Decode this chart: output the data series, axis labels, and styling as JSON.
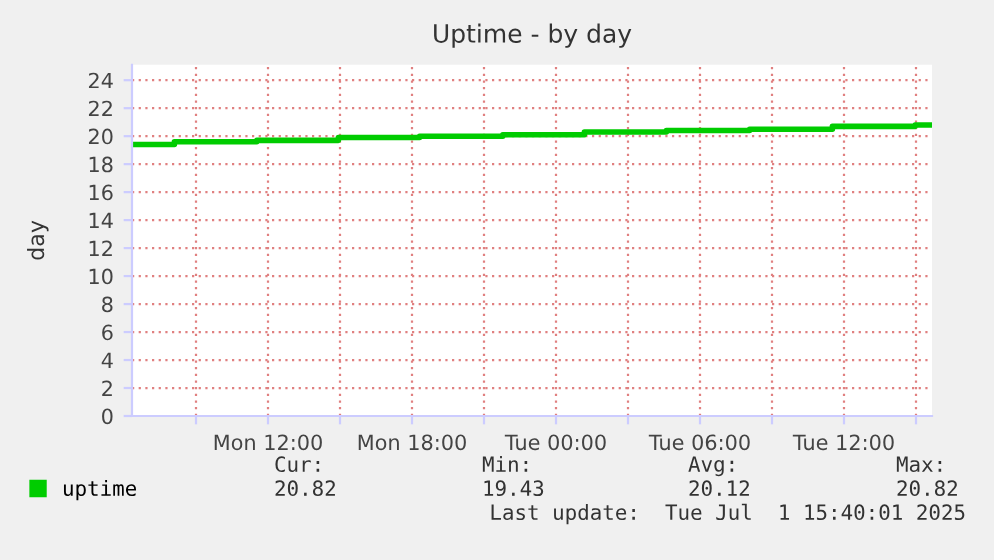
{
  "chart_data": {
    "type": "step",
    "title": "Uptime - by day",
    "ylabel": "day",
    "x": [
      "2025-06-30T06:20",
      "2025-06-30T08:06",
      "2025-06-30T11:32",
      "2025-06-30T14:56",
      "2025-06-30T18:19",
      "2025-06-30T21:47",
      "2025-07-01T01:11",
      "2025-07-01T04:36",
      "2025-07-01T08:04",
      "2025-07-01T11:31",
      "2025-07-01T14:58",
      "2025-07-01T15:40"
    ],
    "series": [
      {
        "name": "uptime",
        "color": "#00cc00",
        "values": [
          19.4,
          19.6,
          19.7,
          19.9,
          20.0,
          20.1,
          20.3,
          20.4,
          20.5,
          20.7,
          20.8,
          20.8
        ]
      }
    ],
    "xlim": [
      "2025-06-30T06:20",
      "2025-07-01T15:40"
    ],
    "xticks": [
      {
        "value": "2025-06-30T09:00",
        "label": null
      },
      {
        "value": "2025-06-30T12:00",
        "label": "Mon 12:00"
      },
      {
        "value": "2025-06-30T15:00",
        "label": null
      },
      {
        "value": "2025-06-30T18:00",
        "label": "Mon 18:00"
      },
      {
        "value": "2025-06-30T21:00",
        "label": null
      },
      {
        "value": "2025-07-01T00:00",
        "label": "Tue 00:00"
      },
      {
        "value": "2025-07-01T03:00",
        "label": null
      },
      {
        "value": "2025-07-01T06:00",
        "label": "Tue 06:00"
      },
      {
        "value": "2025-07-01T09:00",
        "label": null
      },
      {
        "value": "2025-07-01T12:00",
        "label": "Tue 12:00"
      },
      {
        "value": "2025-07-01T15:00",
        "label": null
      }
    ],
    "ylim": [
      0,
      25.1
    ],
    "yticks": [
      0,
      2,
      4,
      6,
      8,
      10,
      12,
      14,
      16,
      18,
      20,
      22,
      24
    ],
    "grid": true,
    "legend": "bottom",
    "annotations": [
      "Cur:",
      "Min:",
      "Avg:",
      "Max:",
      "20.82",
      "19.43",
      "20.12",
      "20.82",
      "Last update:  Tue Jul  1 15:40:01 2025"
    ]
  }
}
